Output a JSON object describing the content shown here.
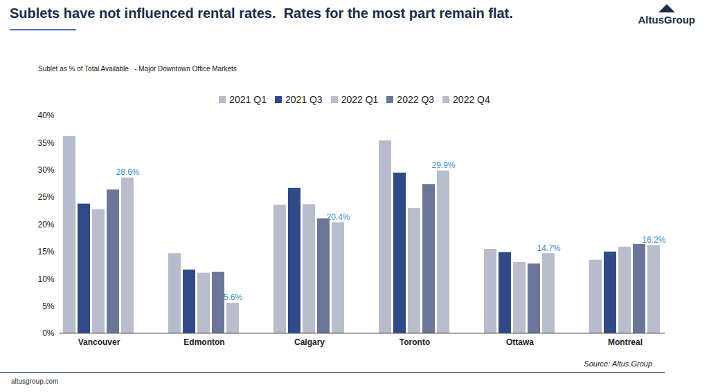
{
  "chart_data": {
    "type": "bar",
    "title": "Sublets have not influenced rental rates.  Rates for the most part remain flat.",
    "subtitle": "Sublet as % of Total Available   - Major Downtown Office Markets",
    "source": "Source: Altus Group",
    "footer": "altusgroup.com",
    "logo": "AltusGroup",
    "categories": [
      "Vancouver",
      "Edmonton",
      "Calgary",
      "Toronto",
      "Ottawa",
      "Montreal"
    ],
    "series": [
      {
        "name": "2021 Q1",
        "color": "#b7bbcb",
        "values": [
          36.2,
          14.7,
          23.6,
          35.4,
          15.5,
          13.5
        ]
      },
      {
        "name": "2021 Q3",
        "color": "#2f4a87",
        "values": [
          23.8,
          11.7,
          26.7,
          29.5,
          14.9,
          15.0
        ]
      },
      {
        "name": "2022 Q1",
        "color": "#b9bdcc",
        "values": [
          22.8,
          11.1,
          23.7,
          23.0,
          13.1,
          15.9
        ]
      },
      {
        "name": "2022 Q3",
        "color": "#6b7698",
        "values": [
          26.4,
          11.3,
          21.1,
          27.4,
          12.8,
          16.4
        ]
      },
      {
        "name": "2022 Q4",
        "color": "#babdcc",
        "values": [
          28.6,
          5.6,
          20.4,
          29.9,
          14.7,
          16.2
        ],
        "data_labels": true,
        "value_labels": [
          "28.6%",
          "5.6%",
          "20.4%",
          "29.9%",
          "14.7%",
          "16.2%"
        ]
      }
    ],
    "ylim": [
      0,
      40
    ],
    "yticks": [
      {
        "value": 0,
        "label": "0%"
      },
      {
        "value": 5,
        "label": "5%"
      },
      {
        "value": 10,
        "label": "10%"
      },
      {
        "value": 15,
        "label": "15%"
      },
      {
        "value": 20,
        "label": "20%"
      },
      {
        "value": 25,
        "label": "25%"
      },
      {
        "value": 30,
        "label": "30%"
      },
      {
        "value": 35,
        "label": "35%"
      },
      {
        "value": 40,
        "label": "40%"
      }
    ],
    "grid": false,
    "legend": "top"
  }
}
